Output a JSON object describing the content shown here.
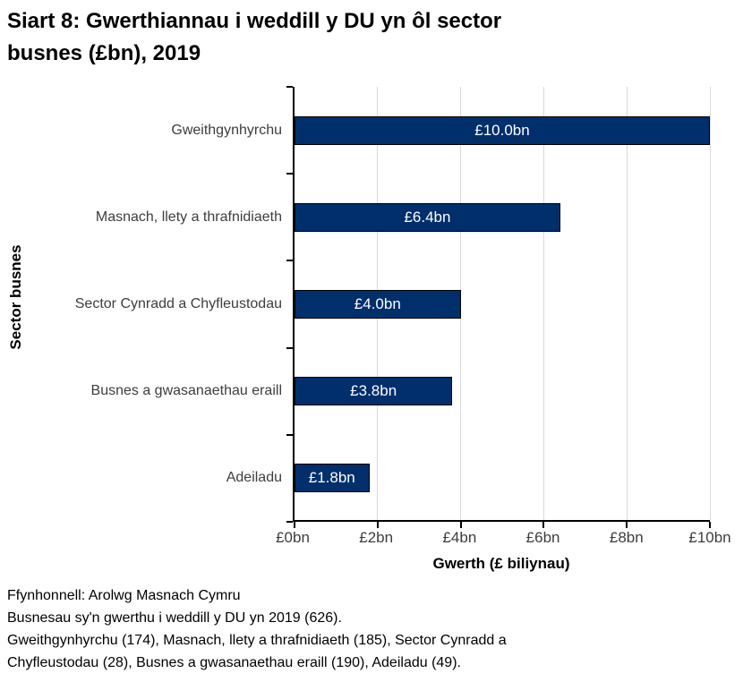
{
  "title": {
    "line1": "Siart 8: Gwerthiannau i weddill y DU yn ôl sector",
    "line2": "busnes (£bn), 2019"
  },
  "chart_data": {
    "type": "bar",
    "orientation": "horizontal",
    "categories": [
      "Gweithgynhyrchu",
      "Masnach, llety a thrafnidiaeth",
      "Sector Cynradd a Chyfleustodau",
      "Busnes a gwasanaethau eraill",
      "Adeiladu"
    ],
    "values": [
      10.0,
      6.4,
      4.0,
      3.8,
      1.8
    ],
    "bar_labels": [
      "£10.0bn",
      "£6.4bn",
      "£4.0bn",
      "£3.8bn",
      "£1.8bn"
    ],
    "xlabel": "Gwerth (£ biliynau)",
    "ylabel": "Sector busnes",
    "xlim": [
      0,
      10
    ],
    "x_ticks": [
      "£0bn",
      "£2bn",
      "£4bn",
      "£6bn",
      "£8bn",
      "£10bn"
    ],
    "grid": "vertical",
    "legend": "none",
    "bar_color": "#002f6c",
    "bar_border_color": "#000000",
    "gridline_color": "#d9d9d9"
  },
  "footer": {
    "lines": [
      "Ffynhonnell: Arolwg Masnach Cymru",
      "Busnesau sy'n gwerthu i weddill y DU yn 2019 (626).",
      "Gweithgynhyrchu (174), Masnach, llety a thrafnidiaeth (185), Sector Cynradd a",
      "Chyfleustodau (28), Busnes a gwasanaethau eraill (190), Adeiladu (49)."
    ]
  }
}
